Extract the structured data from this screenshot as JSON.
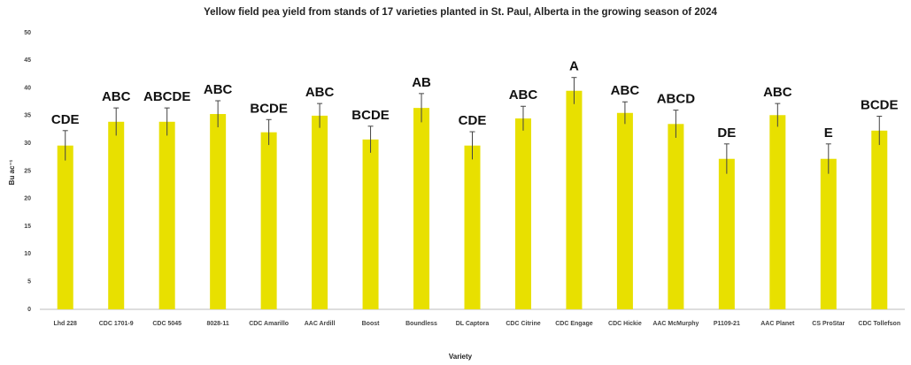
{
  "chart_data": {
    "type": "bar",
    "title": "Yellow field pea yield from stands of 17 varieties planted in St. Paul, Alberta in the growing season of 2024",
    "x_label": "Variety",
    "y_label": "Bu ac⁻¹",
    "categories": [
      "Lhd 228",
      "CDC 1701-9",
      "CDC 5045",
      "8028-11",
      "CDC Amarillo",
      "AAC Ardill",
      "Boost",
      "Boundless",
      "DL Captora",
      "CDC Citrine",
      "CDC Engage",
      "CDC Hickie",
      "AAC McMurphy",
      "P1109-21",
      "AAC Planet",
      "CS ProStar",
      "CDC Tollefson"
    ],
    "values": [
      29.6,
      33.9,
      33.9,
      35.3,
      32.0,
      35.0,
      30.7,
      36.4,
      29.6,
      34.5,
      39.5,
      35.5,
      33.5,
      27.2,
      35.1,
      27.2,
      32.3
    ],
    "errors": [
      2.7,
      2.5,
      2.5,
      2.4,
      2.3,
      2.2,
      2.4,
      2.6,
      2.5,
      2.2,
      2.4,
      2.0,
      2.5,
      2.7,
      2.1,
      2.7,
      2.6
    ],
    "annotations": [
      "CDE",
      "ABC",
      "ABCDE",
      "ABC",
      "BCDE",
      "ABC",
      "BCDE",
      "AB",
      "CDE",
      "ABC",
      "A",
      "ABC",
      "ABCD",
      "DE",
      "ABC",
      "E",
      "BCDE"
    ],
    "color": "#e8e000",
    "ylim": [
      0,
      50
    ],
    "yticks": [
      0,
      5,
      10,
      15,
      20,
      25,
      30,
      35,
      40,
      45,
      50
    ],
    "grid": false
  }
}
